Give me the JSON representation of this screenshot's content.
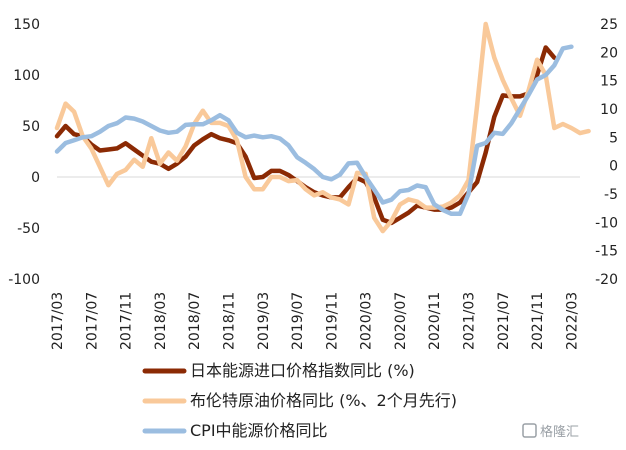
{
  "chart_data": {
    "type": "line",
    "title": "",
    "xlabel": "",
    "ylabel": "",
    "x_tick_labels": [
      "2017/03",
      "2017/07",
      "2017/11",
      "2018/03",
      "2018/07",
      "2018/11",
      "2019/03",
      "2019/07",
      "2019/11",
      "2020/03",
      "2020/07",
      "2020/11",
      "2021/03",
      "2021/07",
      "2021/11",
      "2022/03"
    ],
    "x_range": [
      "2017/03",
      "2022/04"
    ],
    "y_left": {
      "range": [
        -100,
        150
      ],
      "ticks": [
        "-100",
        "-50",
        "0",
        "50",
        "100",
        "150"
      ]
    },
    "y_right": {
      "range": [
        -20,
        25
      ],
      "ticks": [
        "-20",
        "-15",
        "-10",
        "-5",
        "0",
        "5",
        "10",
        "15",
        "20",
        "25"
      ]
    },
    "grid": false,
    "legend_position": "bottom",
    "series": [
      {
        "name": "日本能源进口价格指数同比 (%)",
        "axis": "left",
        "color": "#8b2a04",
        "x": [
          "2017/03",
          "2017/04",
          "2017/05",
          "2017/06",
          "2017/07",
          "2017/08",
          "2017/09",
          "2017/10",
          "2017/11",
          "2017/12",
          "2018/01",
          "2018/02",
          "2018/03",
          "2018/04",
          "2018/05",
          "2018/06",
          "2018/07",
          "2018/08",
          "2018/09",
          "2018/10",
          "2018/11",
          "2018/12",
          "2019/01",
          "2019/02",
          "2019/03",
          "2019/04",
          "2019/05",
          "2019/06",
          "2019/07",
          "2019/08",
          "2019/09",
          "2019/10",
          "2019/11",
          "2019/12",
          "2020/01",
          "2020/02",
          "2020/03",
          "2020/04",
          "2020/05",
          "2020/06",
          "2020/07",
          "2020/08",
          "2020/09",
          "2020/10",
          "2020/11",
          "2020/12",
          "2021/01",
          "2021/02",
          "2021/03",
          "2021/04",
          "2021/05",
          "2021/06",
          "2021/07",
          "2021/08",
          "2021/09",
          "2021/10",
          "2021/11",
          "2021/12",
          "2022/01"
        ],
        "values": [
          40,
          50,
          42,
          40,
          32,
          26,
          27,
          28,
          33,
          27,
          21,
          15,
          13,
          8,
          13,
          20,
          31,
          37,
          42,
          38,
          36,
          33,
          20,
          -1,
          0,
          6,
          6,
          2,
          -4,
          -10,
          -15,
          -18,
          -20,
          -20,
          -10,
          -1,
          -5,
          -20,
          -42,
          -45,
          -40,
          -35,
          -28,
          -30,
          -32,
          -32,
          -30,
          -25,
          -15,
          -5,
          24,
          59,
          80,
          79,
          79,
          82,
          100,
          127,
          117
        ]
      },
      {
        "name": "布伦特原油价格同比 (%、2个月先行)",
        "axis": "left",
        "color": "#f9c99a",
        "x": [
          "2017/03",
          "2017/04",
          "2017/05",
          "2017/06",
          "2017/07",
          "2017/08",
          "2017/09",
          "2017/10",
          "2017/11",
          "2017/12",
          "2018/01",
          "2018/02",
          "2018/03",
          "2018/04",
          "2018/05",
          "2018/06",
          "2018/07",
          "2018/08",
          "2018/09",
          "2018/10",
          "2018/11",
          "2018/12",
          "2019/01",
          "2019/02",
          "2019/03",
          "2019/04",
          "2019/05",
          "2019/06",
          "2019/07",
          "2019/08",
          "2019/09",
          "2019/10",
          "2019/11",
          "2019/12",
          "2020/01",
          "2020/02",
          "2020/03",
          "2020/04",
          "2020/05",
          "2020/06",
          "2020/07",
          "2020/08",
          "2020/09",
          "2020/10",
          "2020/11",
          "2020/12",
          "2021/01",
          "2021/02",
          "2021/03",
          "2021/04",
          "2021/05",
          "2021/06",
          "2021/07",
          "2021/08",
          "2021/09",
          "2021/10",
          "2021/11",
          "2021/12",
          "2022/01",
          "2022/02",
          "2022/03",
          "2022/04",
          "2022/05"
        ],
        "values": [
          48,
          72,
          64,
          40,
          28,
          10,
          -8,
          3,
          7,
          17,
          10,
          38,
          13,
          24,
          16,
          30,
          52,
          65,
          53,
          53,
          50,
          36,
          0,
          -12,
          -12,
          0,
          0,
          -4,
          -3,
          -12,
          -18,
          -15,
          -20,
          -22,
          -27,
          4,
          3,
          -40,
          -53,
          -43,
          -27,
          -22,
          -24,
          -30,
          -30,
          -29,
          -25,
          -18,
          -3,
          70,
          150,
          117,
          95,
          77,
          60,
          85,
          115,
          100,
          48,
          52,
          48,
          43,
          45
        ]
      },
      {
        "name": "CPI中能源价格同比",
        "axis": "right",
        "color": "#9bbde0",
        "x": [
          "2017/03",
          "2017/04",
          "2017/05",
          "2017/06",
          "2017/07",
          "2017/08",
          "2017/09",
          "2017/10",
          "2017/11",
          "2017/12",
          "2018/01",
          "2018/02",
          "2018/03",
          "2018/04",
          "2018/05",
          "2018/06",
          "2018/07",
          "2018/08",
          "2018/09",
          "2018/10",
          "2018/11",
          "2018/12",
          "2019/01",
          "2019/02",
          "2019/03",
          "2019/04",
          "2019/05",
          "2019/06",
          "2019/07",
          "2019/08",
          "2019/09",
          "2019/10",
          "2019/11",
          "2019/12",
          "2020/01",
          "2020/02",
          "2020/03",
          "2020/04",
          "2020/05",
          "2020/06",
          "2020/07",
          "2020/08",
          "2020/09",
          "2020/10",
          "2020/11",
          "2020/12",
          "2021/01",
          "2021/02",
          "2021/03",
          "2021/04",
          "2021/05",
          "2021/06",
          "2021/07",
          "2021/08",
          "2021/09",
          "2021/10",
          "2021/11",
          "2021/12",
          "2022/01",
          "2022/02",
          "2022/03"
        ],
        "values": [
          2.5,
          4,
          4.5,
          5,
          5.2,
          6,
          7,
          7.5,
          8.5,
          8.3,
          7.8,
          7,
          6.2,
          5.8,
          6,
          7.2,
          7.3,
          7.3,
          8,
          8.9,
          8,
          5.8,
          5,
          5.3,
          5,
          5.2,
          4.8,
          3.6,
          1.5,
          0.5,
          -0.6,
          -2,
          -2.4,
          -1.6,
          0.4,
          0.5,
          -2,
          -4.2,
          -6.5,
          -6,
          -4.5,
          -4.3,
          -3.5,
          -3.8,
          -6.8,
          -7.8,
          -8.5,
          -8.5,
          -5,
          3.5,
          4,
          5.8,
          5.6,
          7.5,
          10,
          12.5,
          15.2,
          16,
          17.7,
          20.7,
          21
        ]
      }
    ]
  },
  "watermark": "格隆汇"
}
